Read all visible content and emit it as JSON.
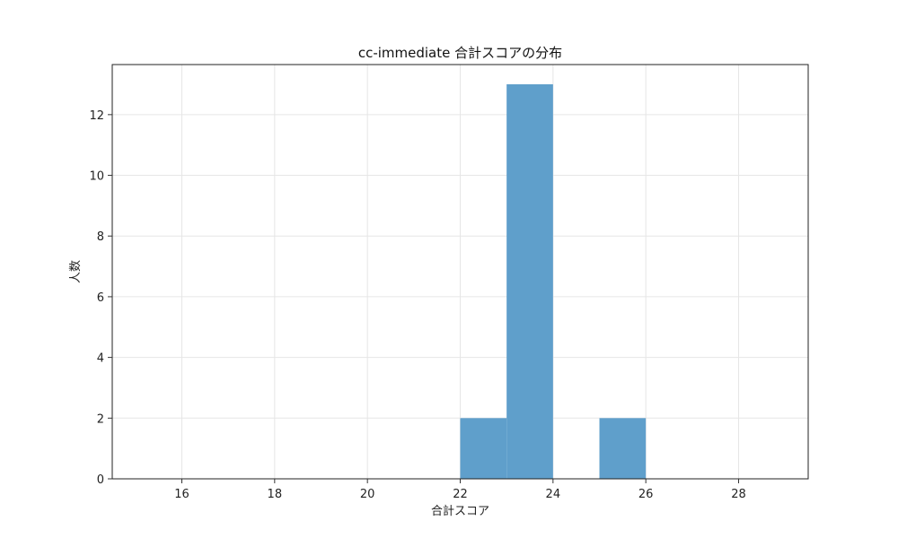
{
  "chart_data": {
    "type": "bar",
    "title": "cc-immediate 合計スコアの分布",
    "xlabel": "合計スコア",
    "ylabel": "人数",
    "xlim": [
      14.5,
      29.5
    ],
    "ylim": [
      0,
      13.65
    ],
    "xticks": [
      16,
      18,
      20,
      22,
      24,
      26,
      28
    ],
    "yticks": [
      0,
      2,
      4,
      6,
      8,
      10,
      12
    ],
    "grid": true,
    "bar_color": "#5f9fcb",
    "bins": [
      {
        "start": 22,
        "end": 23,
        "value": 2
      },
      {
        "start": 23,
        "end": 24,
        "value": 13
      },
      {
        "start": 24,
        "end": 25,
        "value": 0
      },
      {
        "start": 25,
        "end": 26,
        "value": 2
      }
    ]
  }
}
